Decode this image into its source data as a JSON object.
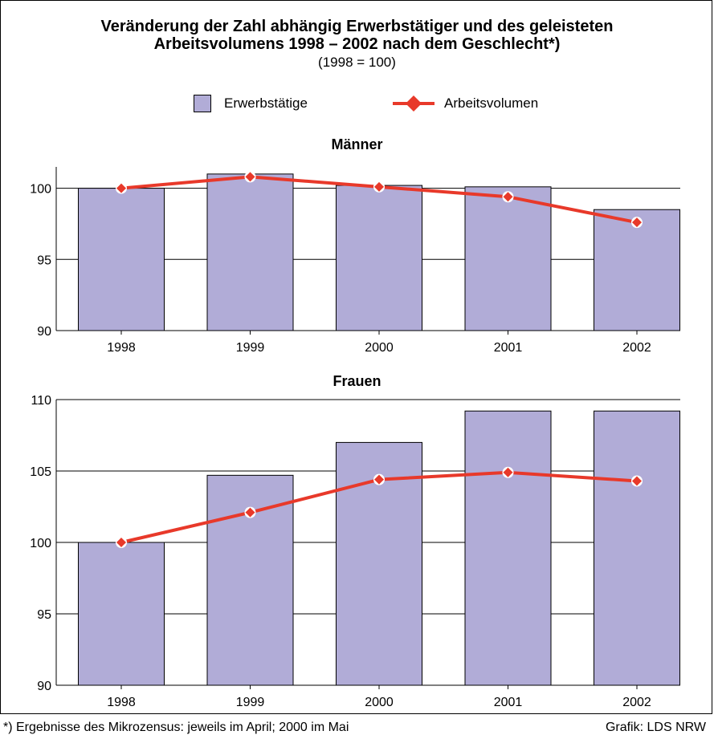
{
  "chart": {
    "title_line1": "Veränderung der Zahl abhängig Erwerbstätiger und des geleisteten",
    "title_line2": "Arbeitsvolumens 1998 – 2002 nach dem Geschlecht*)",
    "subtitle": "(1998 = 100)"
  },
  "legend": {
    "bars_label": "Erwerbstätige",
    "line_label": "Arbeitsvolumen"
  },
  "colors": {
    "bar": "#b1acd7",
    "line": "#e8392a"
  },
  "footer": {
    "note": "*) Ergebnisse des Mikrozensus: jeweils im April; 2000 im Mai",
    "credit": "Grafik: LDS NRW"
  },
  "chart_data": [
    {
      "type": "bar",
      "title": "Männer",
      "categories": [
        "1998",
        "1999",
        "2000",
        "2001",
        "2002"
      ],
      "ylim": [
        90,
        101.5
      ],
      "yticks": [
        90,
        95,
        100
      ],
      "grid": true,
      "series": [
        {
          "name": "Erwerbstätige",
          "type": "bar",
          "values": [
            100.0,
            101.0,
            100.2,
            100.1,
            98.5
          ]
        },
        {
          "name": "Arbeitsvolumen",
          "type": "line",
          "values": [
            100.0,
            100.8,
            100.1,
            99.4,
            97.6
          ]
        }
      ]
    },
    {
      "type": "bar",
      "title": "Frauen",
      "categories": [
        "1998",
        "1999",
        "2000",
        "2001",
        "2002"
      ],
      "ylim": [
        90,
        110
      ],
      "yticks": [
        90,
        95,
        100,
        105,
        110
      ],
      "grid": true,
      "series": [
        {
          "name": "Erwerbstätige",
          "type": "bar",
          "values": [
            100.0,
            104.7,
            107.0,
            109.2,
            109.2
          ]
        },
        {
          "name": "Arbeitsvolumen",
          "type": "line",
          "values": [
            100.0,
            102.1,
            104.4,
            104.9,
            104.3
          ]
        }
      ]
    }
  ]
}
